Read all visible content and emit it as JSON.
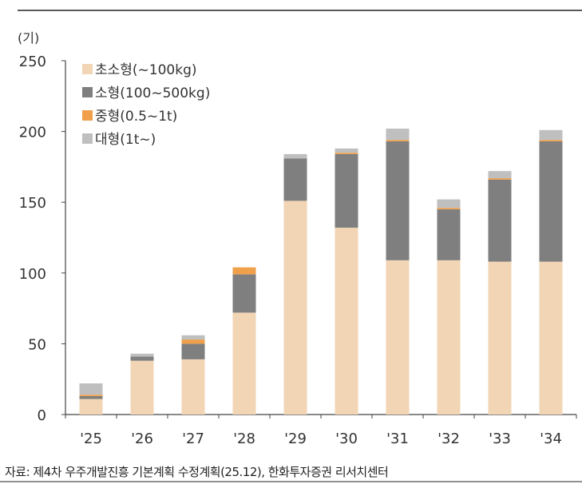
{
  "chart_data": {
    "type": "bar",
    "stacked": true,
    "unit_label": "(기)",
    "categories": [
      "'25",
      "'26",
      "'27",
      "'28",
      "'29",
      "'30",
      "'31",
      "'32",
      "'33",
      "'34"
    ],
    "series": [
      {
        "name": "초소형(~100kg)",
        "color": "#f2d5b5",
        "values": [
          11,
          38,
          39,
          72,
          151,
          132,
          109,
          109,
          108,
          108
        ]
      },
      {
        "name": "소형(100~500kg)",
        "color": "#7f7f7f",
        "values": [
          2,
          3,
          11,
          27,
          30,
          52,
          84,
          36,
          58,
          85
        ]
      },
      {
        "name": "중형(0.5~1t)",
        "color": "#f0a04b",
        "values": [
          1,
          0,
          3,
          5,
          0,
          1,
          1,
          1,
          1,
          1
        ]
      },
      {
        "name": "대형(1t~)",
        "color": "#bfbfbf",
        "values": [
          8,
          2,
          3,
          0,
          3,
          3,
          8,
          6,
          5,
          7
        ]
      }
    ],
    "ylim": [
      0,
      250
    ],
    "yticks": [
      0,
      50,
      100,
      150,
      200,
      250
    ],
    "legend": "top-left",
    "grid": false
  },
  "source": "자료: 제4차 우주개발진흥 기본계획 수정계획(25.12), 한화투자증권 리서치센터"
}
